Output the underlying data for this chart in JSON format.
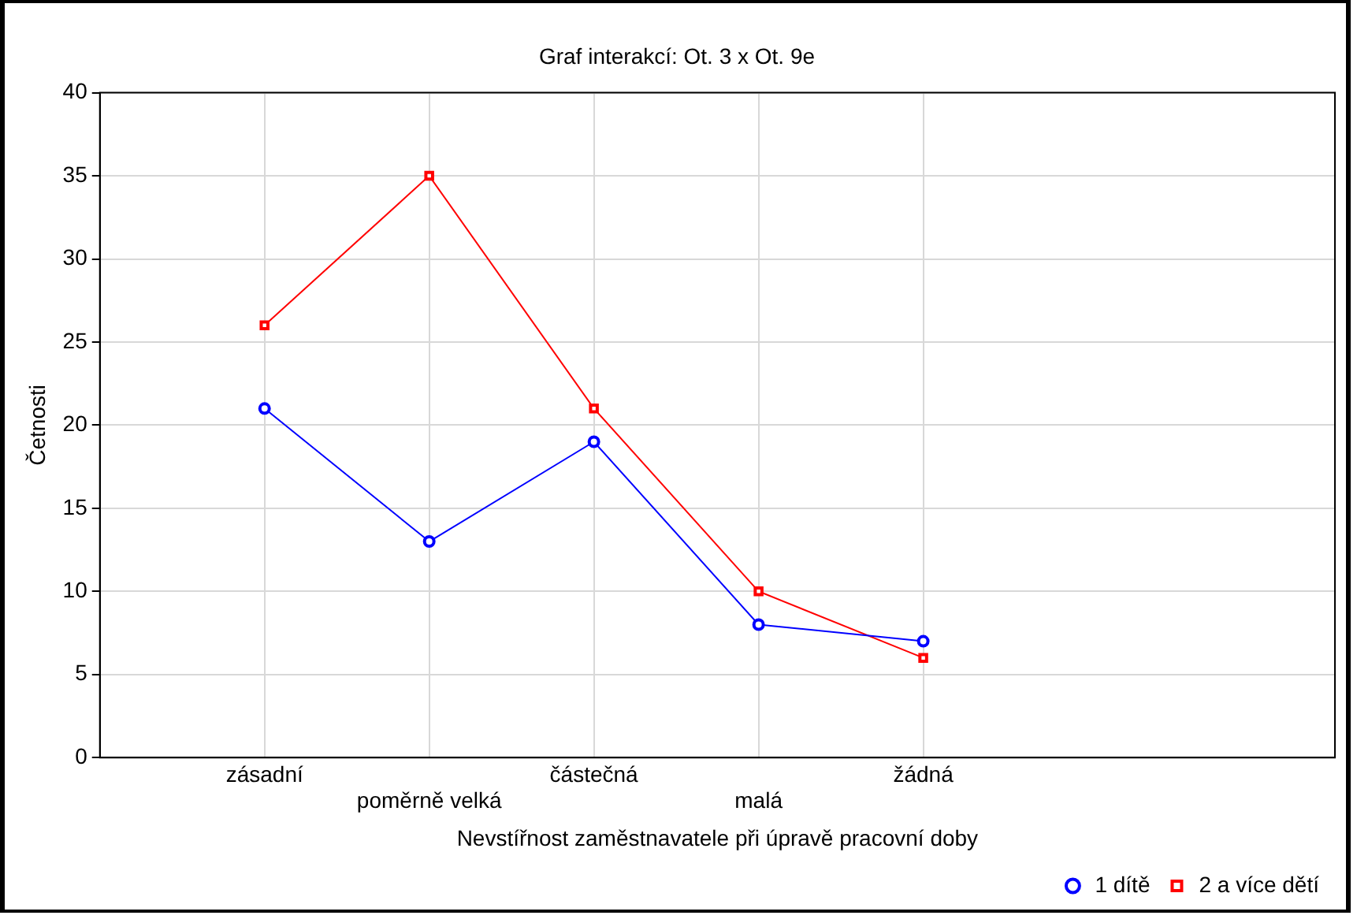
{
  "chart_data": {
    "type": "line",
    "title": "Graf interakcí: Ot. 3 x Ot. 9e",
    "xlabel": "Nevstířnost zaměstnavatele při úpravě pracovní doby",
    "ylabel": "Četnosti",
    "categories": [
      "zásadní",
      "poměrně velká",
      "částečná",
      "malá",
      "žádná"
    ],
    "series": [
      {
        "name": "1 dítě",
        "color": "#0000ff",
        "marker": "circle",
        "values": [
          21,
          13,
          19,
          8,
          7
        ]
      },
      {
        "name": "2 a více dětí",
        "color": "#ff0000",
        "marker": "square",
        "values": [
          26,
          35,
          21,
          10,
          6
        ]
      }
    ],
    "ylim": [
      0,
      40
    ],
    "yticks": [
      0,
      5,
      10,
      15,
      20,
      25,
      30,
      35,
      40
    ],
    "grid": true,
    "legend": "bottom right",
    "line_style": "solid"
  }
}
